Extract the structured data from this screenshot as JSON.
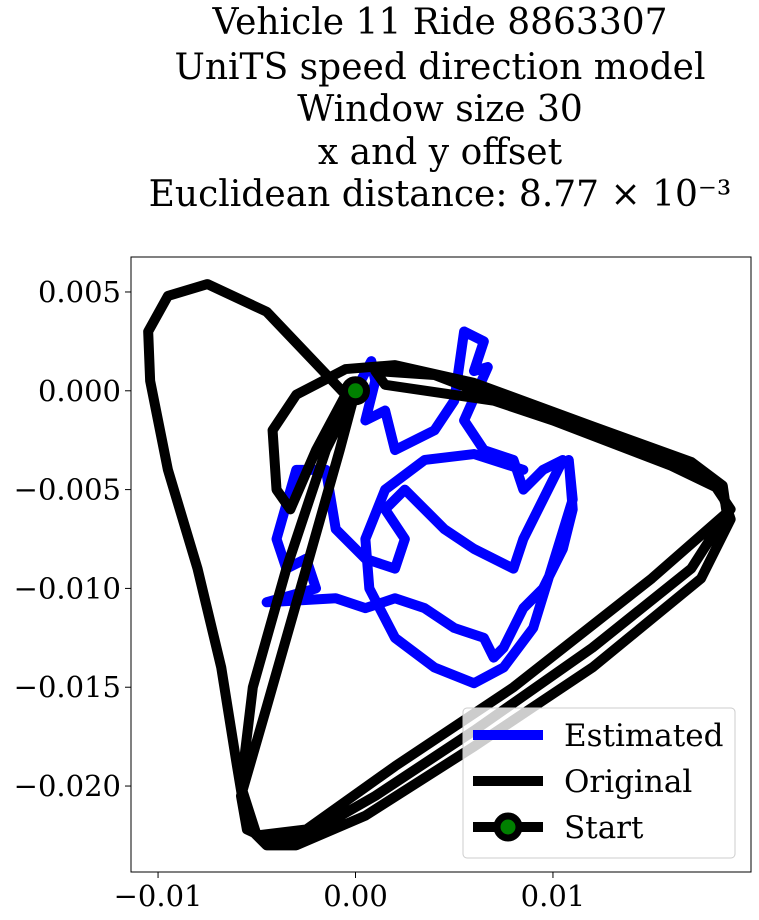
{
  "chart_data": {
    "type": "line",
    "title": [
      "Vehicle 11 Ride 8863307",
      "UniTS speed direction model",
      "Window size 30",
      "x and y offset",
      "Euclidean distance: 8.77 × 10⁻³"
    ],
    "xlim": [
      -0.01137,
      0.02003
    ],
    "ylim": [
      -0.02435,
      0.00677
    ],
    "xticks": [
      {
        "value": -0.01,
        "label": "−0.01"
      },
      {
        "value": 0,
        "label": "0.00"
      },
      {
        "value": 0.01,
        "label": "0.01"
      }
    ],
    "yticks": [
      0.005,
      {
        "value": 0,
        "label": "0.000"
      },
      {
        "value": -0.005,
        "label": "−0.005"
      },
      {
        "value": -0.01,
        "label": "−0.010"
      },
      {
        "value": -0.015,
        "label": "−0.015"
      },
      {
        "value": -0.02,
        "label": "−0.020"
      }
    ],
    "legend": "lower right",
    "series": [
      {
        "name": "Estimated",
        "color": "#0000ff",
        "x": [
          0,
          0.0008,
          0.001,
          0.0005,
          0.0015,
          0.002,
          0.004,
          0.005,
          0.0055,
          0.0065,
          0.006,
          0.0067,
          0.0055,
          0.0065,
          0.008,
          0.0085,
          0.0095,
          0.0105,
          0.0095,
          0.0085,
          0.008,
          0.006,
          0.0045,
          0.0035,
          0.0025,
          0.0015,
          0.0025,
          0.002,
          0.0005,
          -0.001,
          -0.0015,
          -0.003,
          -0.004,
          -0.0035,
          -0.0025,
          -0.002,
          -0.0045,
          -0.001,
          0.0005,
          0.002,
          0.0035,
          0.005,
          0.0065,
          0.007,
          0.0075,
          0.008,
          0.0085,
          0.0095,
          0.0105,
          0.011,
          0.0108,
          0.011,
          0.009,
          0.0075,
          0.006,
          0.004,
          0.002,
          0.0007,
          0.0005,
          0.0015,
          0.0035,
          0.006,
          0.0085
        ],
        "y": [
          0,
          0.0015,
          0.0005,
          -0.0015,
          -0.001,
          -0.003,
          -0.002,
          -0.0005,
          0.003,
          0.0025,
          0.001,
          0.0012,
          -0.0015,
          -0.003,
          -0.0035,
          -0.005,
          -0.004,
          -0.0035,
          -0.0055,
          -0.0075,
          -0.009,
          -0.008,
          -0.007,
          -0.006,
          -0.005,
          -0.006,
          -0.0075,
          -0.009,
          -0.0085,
          -0.007,
          -0.004,
          -0.004,
          -0.0075,
          -0.009,
          -0.0085,
          -0.01,
          -0.0107,
          -0.0105,
          -0.011,
          -0.0105,
          -0.011,
          -0.012,
          -0.0125,
          -0.0135,
          -0.013,
          -0.012,
          -0.011,
          -0.01,
          -0.008,
          -0.006,
          -0.0035,
          -0.0055,
          -0.012,
          -0.014,
          -0.0148,
          -0.014,
          -0.0125,
          -0.01,
          -0.0075,
          -0.005,
          -0.0035,
          -0.0032,
          -0.004
        ]
      },
      {
        "name": "Original",
        "color": "#000000",
        "x": [
          0,
          -0.0008,
          -0.0025,
          -0.0045,
          -0.0058,
          -0.0055,
          -0.0042,
          -0.0025,
          0.001,
          0.006,
          0.012,
          0.017,
          0.0188,
          0.0186,
          0.017,
          0.012,
          0.006,
          0.002,
          -0.0005,
          -0.003,
          -0.0042,
          -0.004,
          -0.0033,
          -0.002,
          -0.0005,
          -0.0045,
          -0.0075,
          -0.0095,
          -0.0105,
          -0.0104,
          -0.0095,
          -0.008,
          -0.0068,
          -0.006,
          -0.0055,
          -0.0045,
          -0.003,
          0.0005,
          0.006,
          0.012,
          0.0175,
          0.019,
          0.0185,
          0.016,
          0.01,
          0.004,
          0.001,
          0.0015,
          0.007,
          0.013,
          0.018,
          0.019,
          0.015,
          0.008,
          0.002,
          -0.0025,
          -0.005,
          -0.0058,
          -0.0052,
          -0.0035,
          -0.0015,
          0
        ],
        "y": [
          0,
          -0.003,
          -0.009,
          -0.016,
          -0.0205,
          -0.0222,
          -0.0228,
          -0.0225,
          -0.0205,
          -0.0172,
          -0.013,
          -0.009,
          -0.0062,
          -0.0048,
          -0.0036,
          -0.0018,
          0.0004,
          0.0013,
          0.0011,
          -0.0002,
          -0.002,
          -0.005,
          -0.006,
          -0.003,
          -0.0002,
          0.004,
          0.0054,
          0.0048,
          0.003,
          0.0005,
          -0.004,
          -0.009,
          -0.014,
          -0.019,
          -0.022,
          -0.023,
          -0.023,
          -0.0215,
          -0.018,
          -0.014,
          -0.0095,
          -0.0065,
          -0.005,
          -0.0038,
          -0.0015,
          0.0008,
          0.001,
          0.0003,
          -0.0005,
          -0.0025,
          -0.0045,
          -0.006,
          -0.0095,
          -0.015,
          -0.019,
          -0.0222,
          -0.0225,
          -0.02,
          -0.015,
          -0.009,
          -0.003,
          0
        ]
      },
      {
        "name": "Start",
        "color": "#000000",
        "marker_face_color": "#008000",
        "x": [
          0
        ],
        "y": [
          0
        ]
      }
    ]
  }
}
